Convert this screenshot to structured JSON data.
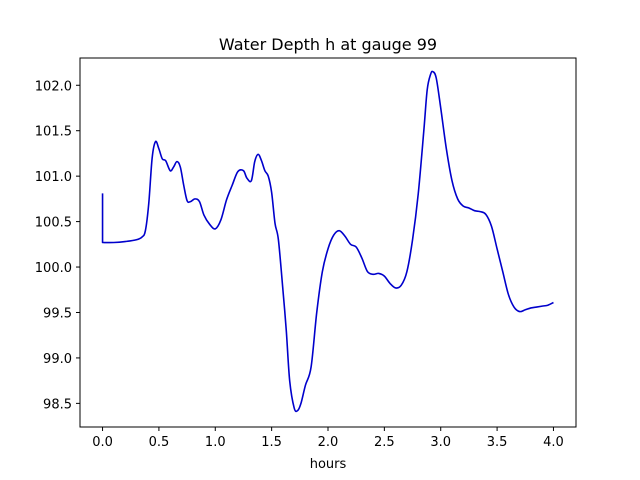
{
  "chart_data": {
    "type": "line",
    "title": "Water Depth h at gauge 99",
    "xlabel": "hours",
    "ylabel": "",
    "xlim": [
      -0.2,
      4.2
    ],
    "ylim": [
      98.24,
      102.3
    ],
    "xticks": [
      0.0,
      0.5,
      1.0,
      1.5,
      2.0,
      2.5,
      3.0,
      3.5,
      4.0
    ],
    "xtick_labels": [
      "0.0",
      "0.5",
      "1.0",
      "1.5",
      "2.0",
      "2.5",
      "3.0",
      "3.5",
      "4.0"
    ],
    "yticks": [
      98.5,
      99.0,
      99.5,
      100.0,
      100.5,
      101.0,
      101.5,
      102.0
    ],
    "ytick_labels": [
      "98.5",
      "99.0",
      "99.5",
      "100.0",
      "100.5",
      "101.0",
      "101.5",
      "102.0"
    ],
    "grid": false,
    "legend": "none",
    "series": [
      {
        "color": "#0000cc",
        "x": [
          0.0,
          0.0,
          0.1,
          0.2,
          0.3,
          0.35,
          0.38,
          0.41,
          0.44,
          0.47,
          0.5,
          0.53,
          0.56,
          0.6,
          0.63,
          0.66,
          0.69,
          0.72,
          0.75,
          0.78,
          0.82,
          0.86,
          0.9,
          0.95,
          1.0,
          1.05,
          1.1,
          1.15,
          1.2,
          1.25,
          1.28,
          1.32,
          1.35,
          1.38,
          1.41,
          1.44,
          1.47,
          1.5,
          1.53,
          1.56,
          1.6,
          1.63,
          1.66,
          1.7,
          1.73,
          1.76,
          1.8,
          1.85,
          1.9,
          1.95,
          2.0,
          2.05,
          2.1,
          2.15,
          2.2,
          2.25,
          2.3,
          2.35,
          2.4,
          2.45,
          2.5,
          2.55,
          2.6,
          2.65,
          2.7,
          2.75,
          2.8,
          2.85,
          2.88,
          2.91,
          2.93,
          2.96,
          3.0,
          3.05,
          3.1,
          3.15,
          3.2,
          3.25,
          3.3,
          3.35,
          3.4,
          3.45,
          3.5,
          3.55,
          3.6,
          3.65,
          3.7,
          3.75,
          3.8,
          3.85,
          3.9,
          3.95,
          4.0
        ],
        "y": [
          100.81,
          100.27,
          100.27,
          100.28,
          100.3,
          100.33,
          100.4,
          100.7,
          101.2,
          101.38,
          101.3,
          101.19,
          101.17,
          101.06,
          101.1,
          101.16,
          101.1,
          100.9,
          100.73,
          100.72,
          100.75,
          100.72,
          100.57,
          100.47,
          100.42,
          100.52,
          100.74,
          100.9,
          101.05,
          101.06,
          100.98,
          100.95,
          101.16,
          101.24,
          101.17,
          101.06,
          101.0,
          100.82,
          100.48,
          100.3,
          99.75,
          99.3,
          98.75,
          98.45,
          98.42,
          98.5,
          98.7,
          98.9,
          99.5,
          99.95,
          100.2,
          100.35,
          100.4,
          100.34,
          100.25,
          100.22,
          100.1,
          99.95,
          99.92,
          99.93,
          99.9,
          99.82,
          99.77,
          99.8,
          99.95,
          100.3,
          100.8,
          101.5,
          101.95,
          102.12,
          102.15,
          102.08,
          101.75,
          101.3,
          100.95,
          100.75,
          100.67,
          100.65,
          100.62,
          100.61,
          100.58,
          100.45,
          100.2,
          99.95,
          99.7,
          99.56,
          99.51,
          99.53,
          99.55,
          99.56,
          99.57,
          99.58,
          99.61
        ]
      }
    ]
  }
}
